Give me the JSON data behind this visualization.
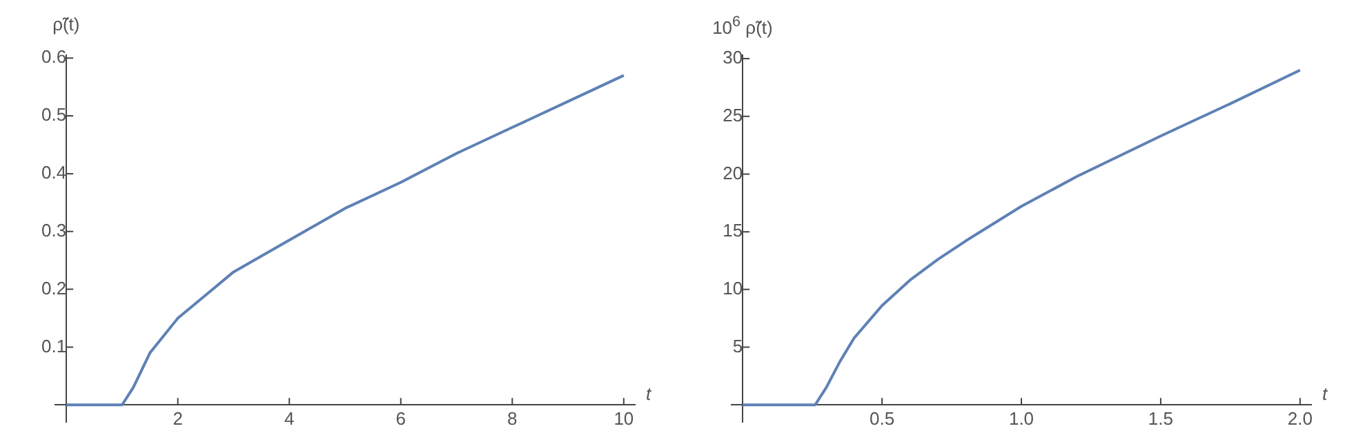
{
  "chart_data": [
    {
      "type": "line",
      "xlabel": "t",
      "ylabel": "ρ̃(t)",
      "marker": "none",
      "legend": false,
      "xlim": [
        -0.2,
        10.2
      ],
      "ylim": [
        -0.03,
        0.605
      ],
      "xticks": [
        2,
        4,
        6,
        8,
        10
      ],
      "yticks": [
        0.1,
        0.2,
        0.3,
        0.4,
        0.5,
        0.6
      ],
      "series": [
        {
          "color": "#5e81b5",
          "x": [
            0,
            0.5,
            1,
            1.2,
            1.5,
            2,
            2.5,
            3,
            4,
            5,
            6,
            7,
            8,
            9,
            10
          ],
          "values": [
            0,
            0,
            0,
            0.03,
            0.09,
            0.15,
            0.19,
            0.23,
            0.285,
            0.34,
            0.385,
            0.435,
            0.48,
            0.525,
            0.57
          ]
        }
      ]
    },
    {
      "type": "line",
      "xlabel": "t",
      "ylabel": "10$^{6}$ ρ̃(t)",
      "marker": "none",
      "legend": false,
      "xlim": [
        -0.04,
        2.04
      ],
      "ylim": [
        -1.5,
        30.3
      ],
      "xticks": [
        0.5,
        {
          "value": 1,
          "label": "1.0"
        },
        1.5,
        {
          "value": 2,
          "label": "2.0"
        }
      ],
      "yticks": [
        5,
        10,
        15,
        20,
        25,
        30
      ],
      "series": [
        {
          "color": "#5e81b5",
          "x": [
            0,
            0.1,
            0.26,
            0.3,
            0.35,
            0.4,
            0.5,
            0.6,
            0.7,
            0.8,
            1.0,
            1.2,
            1.5,
            1.75,
            2.0
          ],
          "values": [
            0,
            0,
            0,
            1.5,
            3.8,
            5.8,
            8.6,
            10.8,
            12.6,
            14.2,
            17.2,
            19.8,
            23.3,
            26.1,
            29
          ]
        }
      ]
    }
  ]
}
